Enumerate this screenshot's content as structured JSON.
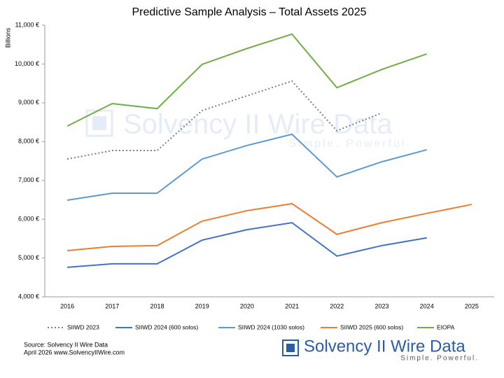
{
  "chart_data": {
    "type": "line",
    "title": "Predictive Sample Analysis – Total Assets 2025",
    "y_axis_label": "Billions",
    "categories": [
      "2016",
      "2017",
      "2018",
      "2019",
      "2020",
      "2021",
      "2022",
      "2023",
      "2024",
      "2025"
    ],
    "series": [
      {
        "name": "SIIWD 2023",
        "color": "#7f7f7f",
        "line_style": "dotted",
        "values": [
          7550,
          7770,
          7770,
          8800,
          9180,
          9560,
          8280,
          8740,
          null,
          null
        ]
      },
      {
        "name": "SIIWD 2024 (600 solos)",
        "color": "#4472c4",
        "line_style": "solid",
        "values": [
          4760,
          4850,
          4850,
          5460,
          5730,
          5910,
          5050,
          5320,
          5520,
          null
        ]
      },
      {
        "name": "SIIWD 2024 (1030 solos)",
        "color": "#5b9bd5",
        "line_style": "solid",
        "values": [
          6490,
          6670,
          6670,
          7550,
          7900,
          8190,
          7090,
          7480,
          7790,
          null
        ]
      },
      {
        "name": "SIIWD 2025 (600 solos)",
        "color": "#ed7d31",
        "line_style": "solid",
        "values": [
          5190,
          5300,
          5320,
          5950,
          6220,
          6400,
          5610,
          5910,
          6150,
          6380
        ]
      },
      {
        "name": "EIOPA",
        "color": "#70ad47",
        "line_style": "solid",
        "values": [
          8400,
          8980,
          8850,
          9990,
          10400,
          10770,
          9390,
          9860,
          10260,
          null
        ]
      }
    ],
    "ylim": [
      4000,
      11000
    ],
    "yticks": [
      {
        "value": 4000,
        "label": "4,000 €"
      },
      {
        "value": 5000,
        "label": "5,000 €"
      },
      {
        "value": 6000,
        "label": "6,000 €"
      },
      {
        "value": 7000,
        "label": "7,000 €"
      },
      {
        "value": 8000,
        "label": "8,000 €"
      },
      {
        "value": 9000,
        "label": "9,000 €"
      },
      {
        "value": 10000,
        "label": "10,000 €"
      },
      {
        "value": 11000,
        "label": "11,000 €"
      }
    ],
    "grid": false,
    "legend": "bottom",
    "source": [
      "Source: Solvency II Wire Data",
      "April 2026 www.SolvencyIIWire.com"
    ],
    "brand": {
      "name": "Solvency II Wire Data",
      "tagline": "Simple. Powerful."
    }
  }
}
